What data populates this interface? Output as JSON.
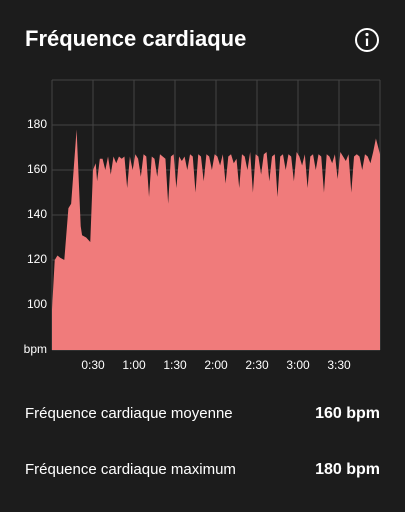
{
  "header": {
    "title": "Fréquence cardiaque"
  },
  "chart_data": {
    "type": "area",
    "x": [
      0,
      2,
      4,
      6,
      9,
      12,
      14,
      18,
      21,
      22,
      25,
      28,
      30,
      32,
      33,
      35,
      37,
      39,
      41,
      43,
      45,
      47,
      49,
      51,
      53,
      55,
      57,
      59,
      61,
      63,
      65,
      67,
      69,
      71,
      73,
      75,
      77,
      79,
      81,
      83,
      85,
      87,
      89,
      91,
      93,
      95,
      97,
      99,
      101,
      103,
      105,
      107,
      109,
      111,
      113,
      115,
      117,
      119,
      121,
      123,
      125,
      127,
      129,
      131,
      133,
      135,
      137,
      139,
      141,
      143,
      145,
      147,
      149,
      151,
      153,
      155,
      157,
      159,
      161,
      163,
      165,
      167,
      169,
      171,
      173,
      175,
      177,
      179,
      181,
      183,
      185,
      187,
      189,
      191,
      193,
      195,
      197,
      199,
      201,
      203,
      205,
      207,
      209,
      211,
      213,
      215,
      217,
      219,
      221,
      223,
      225,
      227,
      229,
      231,
      233,
      235,
      237,
      240
    ],
    "values": [
      98,
      120,
      122,
      121,
      120,
      143,
      145,
      178,
      135,
      131,
      130,
      128,
      160,
      163,
      155,
      165,
      165,
      160,
      166,
      158,
      166,
      163,
      166,
      165,
      166,
      152,
      166,
      160,
      167,
      165,
      157,
      167,
      166,
      148,
      166,
      165,
      157,
      167,
      166,
      165,
      145,
      166,
      167,
      152,
      166,
      164,
      166,
      160,
      167,
      166,
      150,
      167,
      166,
      155,
      167,
      166,
      160,
      167,
      166,
      162,
      167,
      154,
      166,
      167,
      163,
      165,
      152,
      167,
      166,
      160,
      168,
      150,
      167,
      166,
      158,
      167,
      168,
      155,
      166,
      167,
      148,
      166,
      167,
      160,
      167,
      166,
      155,
      168,
      166,
      162,
      167,
      152,
      166,
      167,
      160,
      167,
      166,
      150,
      167,
      166,
      163,
      167,
      156,
      168,
      166,
      164,
      167,
      150,
      166,
      167,
      166,
      160,
      167,
      166,
      163,
      168,
      174,
      167
    ],
    "color": "#f07b7b",
    "xlim": [
      0,
      240
    ],
    "xticks": [
      {
        "value": 30,
        "label": "0:30"
      },
      {
        "value": 60,
        "label": "1:00"
      },
      {
        "value": 90,
        "label": "1:30"
      },
      {
        "value": 120,
        "label": "2:00"
      },
      {
        "value": 150,
        "label": "2:30"
      },
      {
        "value": 180,
        "label": "3:00"
      },
      {
        "value": 210,
        "label": "3:30"
      }
    ],
    "ylim": [
      80,
      200
    ],
    "yticks": [
      {
        "value": 80,
        "label": "bpm"
      },
      100,
      120,
      140,
      160,
      180
    ],
    "grid": true
  },
  "stats": [
    {
      "label": "Fréquence cardiaque moyenne",
      "value": "160 bpm"
    },
    {
      "label": "Fréquence cardiaque maximum",
      "value": "180 bpm"
    }
  ]
}
